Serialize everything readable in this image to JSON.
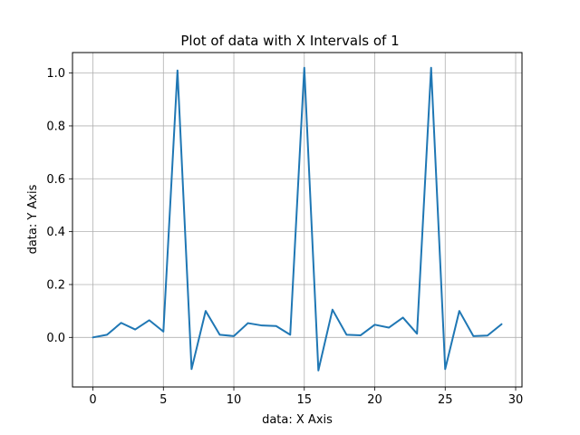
{
  "chart_data": {
    "type": "line",
    "title": "Plot of data with X Intervals of 1",
    "xlabel": "data: X Axis",
    "ylabel": "data: Y Axis",
    "xlim": [
      -1.45,
      30.45
    ],
    "ylim": [
      -0.1875,
      1.0775
    ],
    "x_ticks": [
      0,
      5,
      10,
      15,
      20,
      25,
      30
    ],
    "x_tick_labels": [
      "0",
      "5",
      "10",
      "15",
      "20",
      "25",
      "30"
    ],
    "y_ticks": [
      0.0,
      0.2,
      0.4,
      0.6,
      0.8,
      1.0
    ],
    "y_tick_labels": [
      "0.0",
      "0.2",
      "0.4",
      "0.6",
      "0.8",
      "1.0"
    ],
    "grid": true,
    "line_color": "#1f77b4",
    "x": [
      0,
      1,
      2,
      3,
      4,
      5,
      6,
      7,
      8,
      9,
      10,
      11,
      12,
      13,
      14,
      15,
      16,
      17,
      18,
      19,
      20,
      21,
      22,
      23,
      24,
      25,
      26,
      27,
      28,
      29
    ],
    "y": [
      0.0,
      0.01,
      0.055,
      0.03,
      0.065,
      0.022,
      1.01,
      -0.12,
      0.1,
      0.01,
      0.005,
      0.054,
      0.045,
      0.043,
      0.01,
      1.02,
      -0.125,
      0.105,
      0.01,
      0.008,
      0.048,
      0.037,
      0.075,
      0.014,
      1.02,
      -0.12,
      0.1,
      0.005,
      0.007,
      0.05
    ]
  }
}
